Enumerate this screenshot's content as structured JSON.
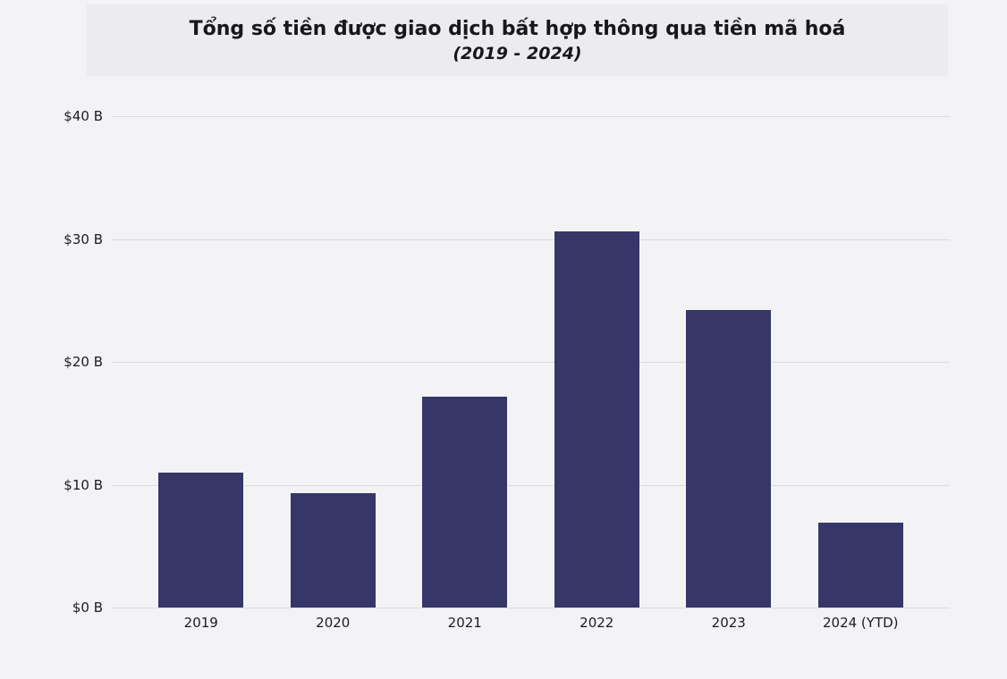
{
  "header": {
    "title": "Tổng số tiền được giao dịch bất hợp thông qua tiền mã hoá",
    "subtitle": "(2019 - 2024)"
  },
  "chart_data": {
    "type": "bar",
    "title": "Tổng số tiền được giao dịch bất hợp thông qua tiền mã hoá",
    "subtitle": "(2019 - 2024)",
    "categories": [
      "2019",
      "2020",
      "2021",
      "2022",
      "2023",
      "2024 (YTD)"
    ],
    "values": [
      11.0,
      9.3,
      17.2,
      30.6,
      24.2,
      6.9
    ],
    "xlabel": "",
    "ylabel": "",
    "ylim": [
      0,
      40
    ],
    "yticks": [
      0,
      10,
      20,
      30,
      40
    ],
    "ytick_labels": [
      "$0 B",
      "$10 B",
      "$20 B",
      "$30 B",
      "$40 B"
    ],
    "grid": true,
    "legend": "none",
    "bar_color": "#373669",
    "background_color": "#f3f3f5",
    "header_background_color": "#ececef",
    "gridline_color": "#dcdcdf"
  }
}
